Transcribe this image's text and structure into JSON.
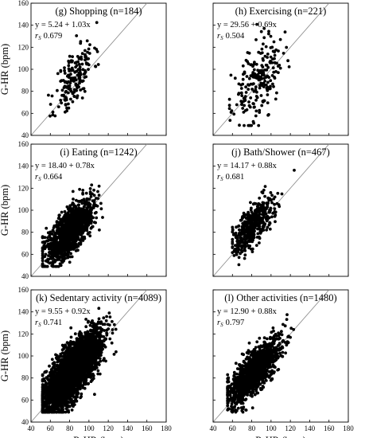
{
  "figure": {
    "x_axis_label": "R-HR (bpm)",
    "y_axis_label": "G-HR (bpm)"
  },
  "chart_data": [
    {
      "type": "scatter",
      "panel": "g",
      "title": "(g) Shopping (n=184)",
      "equation": "y = 5.24 + 1.03x",
      "rs_label": "r",
      "rs_sub": "S",
      "rs_value": "0.679",
      "n": 184,
      "intercept": 5.24,
      "slope": 1.03,
      "x_center": 85,
      "x_spread": 10,
      "x_min": 58,
      "x_max": 120,
      "y_spread": 13,
      "seed": 11,
      "xlim": [
        40,
        180
      ],
      "ylim": [
        40,
        160
      ],
      "xticks": [
        40,
        60,
        80,
        100,
        120,
        140,
        160,
        180
      ],
      "yticks": [
        40,
        60,
        80,
        100,
        120,
        140,
        160
      ],
      "xlabel": "",
      "ylabel": "G-HR (bpm)",
      "show_xticks": false,
      "show_yticks": true,
      "reference_line": "identity"
    },
    {
      "type": "scatter",
      "panel": "h",
      "title": "(h) Exercising (n=221)",
      "equation": "y = 29.56 + 0.69x",
      "rs_label": "r",
      "rs_sub": "S",
      "rs_value": "0.504",
      "n": 221,
      "intercept": 29.56,
      "slope": 0.69,
      "x_center": 86,
      "x_spread": 13,
      "x_min": 57,
      "x_max": 130,
      "y_spread": 17,
      "seed": 23,
      "xlim": [
        40,
        180
      ],
      "ylim": [
        40,
        160
      ],
      "xticks": [
        40,
        60,
        80,
        100,
        120,
        140,
        160,
        180
      ],
      "yticks": [
        40,
        60,
        80,
        100,
        120,
        140,
        160
      ],
      "xlabel": "",
      "ylabel": "",
      "show_xticks": false,
      "show_yticks": false,
      "reference_line": "identity"
    },
    {
      "type": "scatter",
      "panel": "i",
      "title": "(i) Eating (n=1242)",
      "equation": "y = 18.40 + 0.78x",
      "rs_label": "r",
      "rs_sub": "S",
      "rs_value": "0.664",
      "n": 1242,
      "intercept": 18.4,
      "slope": 0.78,
      "x_center": 80,
      "x_spread": 12,
      "x_min": 52,
      "x_max": 128,
      "y_spread": 10,
      "seed": 37,
      "xlim": [
        40,
        180
      ],
      "ylim": [
        40,
        160
      ],
      "xticks": [
        40,
        60,
        80,
        100,
        120,
        140,
        160,
        180
      ],
      "yticks": [
        40,
        60,
        80,
        100,
        120,
        140,
        160
      ],
      "xlabel": "",
      "ylabel": "G-HR (bpm)",
      "show_xticks": false,
      "show_yticks": true,
      "reference_line": "identity"
    },
    {
      "type": "scatter",
      "panel": "j",
      "title": "(j) Bath/Shower (n=467)",
      "equation": "y = 14.17 + 0.88x",
      "rs_label": "r",
      "rs_sub": "S",
      "rs_value": "0.681",
      "n": 467,
      "intercept": 14.17,
      "slope": 0.88,
      "x_center": 82,
      "x_spread": 11,
      "x_min": 60,
      "x_max": 128,
      "y_spread": 9,
      "seed": 51,
      "xlim": [
        40,
        180
      ],
      "ylim": [
        40,
        160
      ],
      "xticks": [
        40,
        60,
        80,
        100,
        120,
        140,
        160,
        180
      ],
      "yticks": [
        40,
        60,
        80,
        100,
        120,
        140,
        160
      ],
      "xlabel": "",
      "ylabel": "",
      "show_xticks": false,
      "show_yticks": false,
      "reference_line": "identity"
    },
    {
      "type": "scatter",
      "panel": "k",
      "title": "(k) Sedentary activity (n=4089)",
      "equation": "y = 9.55 + 0.92x",
      "rs_label": "r",
      "rs_sub": "S",
      "rs_value": "0.741",
      "n": 4089,
      "intercept": 9.55,
      "slope": 0.92,
      "x_center": 83,
      "x_spread": 14,
      "x_min": 52,
      "x_max": 128,
      "y_spread": 11,
      "seed": 67,
      "xlim": [
        40,
        180
      ],
      "ylim": [
        40,
        160
      ],
      "xticks": [
        40,
        60,
        80,
        100,
        120,
        140,
        160,
        180
      ],
      "yticks": [
        40,
        60,
        80,
        100,
        120,
        140,
        160
      ],
      "xlabel": "R-HR (bpm)",
      "ylabel": "G-HR (bpm)",
      "show_xticks": true,
      "show_yticks": true,
      "reference_line": "identity"
    },
    {
      "type": "scatter",
      "panel": "l",
      "title": "(l) Other activities (n=1480)",
      "equation": "y = 12.90 + 0.88x",
      "rs_label": "r",
      "rs_sub": "S",
      "rs_value": "0.797",
      "n": 1480,
      "intercept": 12.9,
      "slope": 0.88,
      "x_center": 82,
      "x_spread": 13,
      "x_min": 55,
      "x_max": 136,
      "y_spread": 9,
      "seed": 89,
      "xlim": [
        40,
        180
      ],
      "ylim": [
        40,
        160
      ],
      "xticks": [
        40,
        60,
        80,
        100,
        120,
        140,
        160,
        180
      ],
      "yticks": [
        40,
        60,
        80,
        100,
        120,
        140,
        160
      ],
      "xlabel": "R-HR (bpm)",
      "ylabel": "",
      "show_xticks": true,
      "show_yticks": false,
      "reference_line": "identity"
    }
  ]
}
